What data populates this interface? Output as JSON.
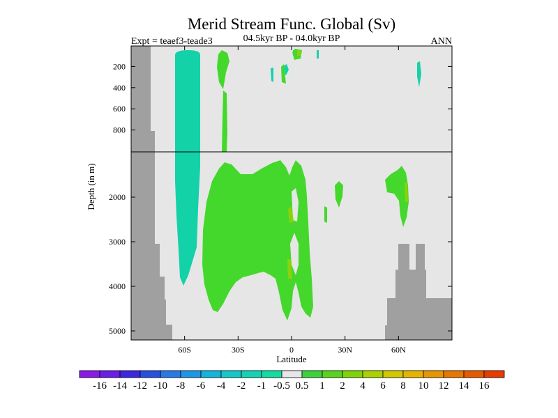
{
  "chart_data": {
    "type": "heatmap",
    "title": "Merid Stream Func. Global (Sv)",
    "experiment": "Expt = teaef3-teade3",
    "period": "04.5kyr BP - 04.0kyr BP",
    "season": "ANN",
    "xlabel": "Latitude",
    "ylabel": "Depth (in m)",
    "x_ticks": [
      "60S",
      "30S",
      "0",
      "30N",
      "60N"
    ],
    "x_tick_values": [
      -60,
      -30,
      0,
      30,
      60
    ],
    "xlim": [
      -90,
      90
    ],
    "y_ticks_upper": [
      "200",
      "400",
      "600",
      "800"
    ],
    "y_ticks_upper_values": [
      200,
      400,
      600,
      800
    ],
    "y_ticks_lower": [
      "2000",
      "3000",
      "4000",
      "5000"
    ],
    "y_ticks_lower_values": [
      2000,
      3000,
      4000,
      5000
    ],
    "upper_panel_depth_range": [
      0,
      1000
    ],
    "lower_panel_depth_range": [
      1000,
      5000
    ],
    "background_color": "#e6e6e6",
    "land_color": "#a0a0a0",
    "colorbar": {
      "labels": [
        "-16",
        "-14",
        "-12",
        "-10",
        "-8",
        "-6",
        "-4",
        "-2",
        "-1",
        "-0.5",
        "0.5",
        "1",
        "2",
        "4",
        "6",
        "8",
        "10",
        "12",
        "14",
        "16"
      ],
      "colors": [
        "#8a1ae6",
        "#6a1ee6",
        "#3c28e0",
        "#2850e0",
        "#2878e6",
        "#1e96e6",
        "#14b4dc",
        "#14c8c8",
        "#14d2b4",
        "#14dca0",
        "#e6e6e6",
        "#3cd23c",
        "#5ad21e",
        "#82d20a",
        "#aad200",
        "#d2c800",
        "#e6b400",
        "#e69600",
        "#e67800",
        "#e65a00",
        "#e63c00"
      ]
    }
  }
}
